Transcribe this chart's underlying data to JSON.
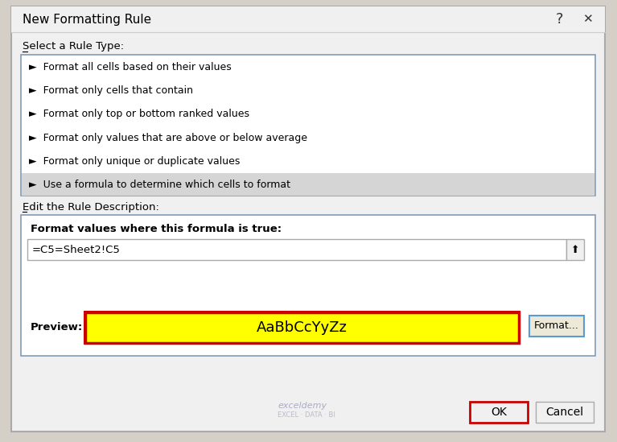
{
  "title": "New Formatting Rule",
  "bg_color": "#d4d0c8",
  "dialog_bg": "#ece9d8",
  "dialog_inner_bg": "#f0f0f0",
  "title_color": "#000000",
  "section1_label": "Select a Rule Type:",
  "rule_types": [
    "►  Format all cells based on their values",
    "►  Format only cells that contain",
    "►  Format only top or bottom ranked values",
    "►  Format only values that are above or below average",
    "►  Format only unique or duplicate values",
    "►  Use a formula to determine which cells to format"
  ],
  "selected_rule_index": 5,
  "selected_rule_bg": "#d5d5d5",
  "section2_label": "Edit the Rule Description:",
  "formula_label": "Format values where this formula is true:",
  "formula_value": "=C5=Sheet2!C5",
  "preview_label": "Preview:",
  "preview_text": "AaBbCcYyZz",
  "preview_bg": "#ffff00",
  "preview_border_color": "#cc0000",
  "ok_border_color": "#cc0000",
  "format_btn_border": "#5b9bd5",
  "format_btn_bg": "#ece9d8",
  "ok_btn_text": "OK",
  "cancel_btn_text": "Cancel",
  "format_btn_text": "Format...",
  "list_bg": "#ffffff",
  "list_border": "#7f9db9",
  "desc_box_bg": "#ffffff",
  "desc_box_border": "#7f9db9"
}
